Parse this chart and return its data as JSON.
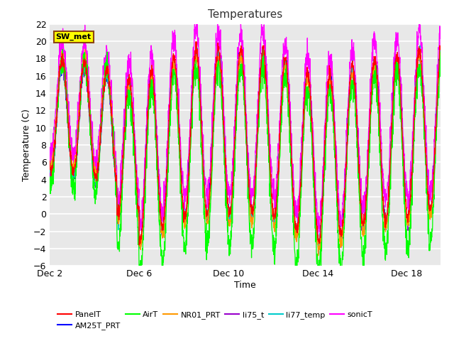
{
  "title": "Temperatures",
  "xlabel": "Time",
  "ylabel": "Temperature (C)",
  "ylim": [
    -6,
    22
  ],
  "yticks": [
    -6,
    -4,
    -2,
    0,
    2,
    4,
    6,
    8,
    10,
    12,
    14,
    16,
    18,
    20,
    22
  ],
  "x_tick_labels": [
    "Dec 2",
    "Dec 6",
    "Dec 10",
    "Dec 14",
    "Dec 18"
  ],
  "x_tick_positions": [
    1,
    5,
    9,
    13,
    17
  ],
  "series_colors": {
    "PanelT": "#ff0000",
    "AM25T_PRT": "#0000ff",
    "AirT": "#00ff00",
    "NR01_PRT": "#ff9900",
    "li75_t": "#9900cc",
    "li77_temp": "#00cccc",
    "sonicT": "#ff00ff"
  },
  "background_color": "#ffffff",
  "plot_bg_color": "#e8e8e8",
  "sw_met_box_color": "#ffff00",
  "sw_met_border_color": "#8b4513",
  "grid_color": "#ffffff",
  "n_days": 18,
  "seed": 7
}
